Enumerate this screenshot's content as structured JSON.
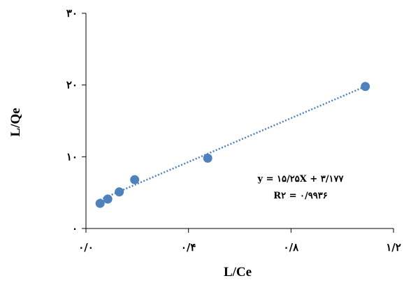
{
  "chart_data": {
    "type": "scatter",
    "title": "",
    "xlabel": "L/Ce",
    "ylabel": "L/Qe",
    "xlim": [
      0,
      1.2
    ],
    "ylim": [
      0,
      30
    ],
    "x_ticks": [
      {
        "value": 0,
        "label": "۰/۰"
      },
      {
        "value": 0.4,
        "label": "۰/۴"
      },
      {
        "value": 0.8,
        "label": "۰/۸"
      },
      {
        "value": 1.2,
        "label": "۱/۲"
      }
    ],
    "y_ticks": [
      {
        "value": 0,
        "label": "۰"
      },
      {
        "value": 10,
        "label": "۱۰"
      },
      {
        "value": 20,
        "label": "۲۰"
      },
      {
        "value": 30,
        "label": "۳۰"
      }
    ],
    "series": [
      {
        "points": [
          {
            "x": 0.055,
            "y": 3.5
          },
          {
            "x": 0.085,
            "y": 4.1
          },
          {
            "x": 0.13,
            "y": 5.1
          },
          {
            "x": 0.19,
            "y": 6.8
          },
          {
            "x": 0.475,
            "y": 9.8
          },
          {
            "x": 1.09,
            "y": 19.8
          }
        ],
        "color": "#4f81bd"
      }
    ],
    "trendline": {
      "slope": 15.25,
      "intercept": 3.177,
      "x_range": [
        0.055,
        1.09
      ],
      "color": "#4f81bd",
      "style": "dotted"
    },
    "annotations": {
      "equation": "y = ۱۵/۲۵X + ۳/۱۷۷",
      "r_squared": "R۲ = ۰/۹۹۳۶"
    },
    "grid": false
  }
}
